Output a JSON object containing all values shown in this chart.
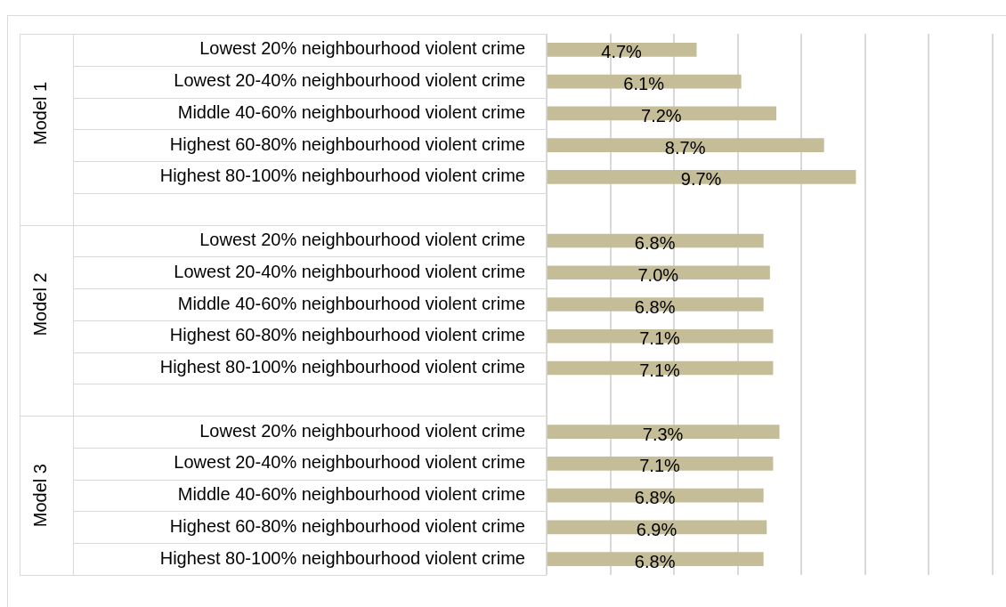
{
  "chart_data": {
    "type": "bar",
    "orientation": "horizontal",
    "categories": [
      "Lowest 20% neighbourhood violent crime",
      "Lowest 20-40% neighbourhood violent crime",
      "Middle 40-60% neighbourhood violent crime",
      "Highest 60-80% neighbourhood violent crime",
      "Highest 80-100% neighbourhood violent crime",
      null,
      "Lowest 20% neighbourhood violent crime",
      "Lowest 20-40% neighbourhood violent crime",
      "Middle 40-60% neighbourhood violent crime",
      "Highest 60-80% neighbourhood violent crime",
      "Highest 80-100% neighbourhood violent crime",
      null,
      "Lowest 20% neighbourhood violent crime",
      "Lowest 20-40% neighbourhood violent crime",
      "Middle 40-60% neighbourhood violent crime",
      "Highest 60-80% neighbourhood violent crime",
      "Highest 80-100% neighbourhood violent crime"
    ],
    "values": [
      4.7,
      6.1,
      7.2,
      8.7,
      9.7,
      null,
      6.8,
      7.0,
      6.8,
      7.1,
      7.1,
      null,
      7.3,
      7.1,
      6.8,
      6.9,
      6.8
    ],
    "value_labels": [
      "4.7%",
      "6.1%",
      "7.2%",
      "8.7%",
      "9.7%",
      null,
      "6.8%",
      "7.0%",
      "6.8%",
      "7.1%",
      "7.1%",
      null,
      "7.3%",
      "7.1%",
      "6.8%",
      "6.9%",
      "6.8%"
    ],
    "color": "#c4bd97",
    "xlim": [
      0,
      14
    ],
    "xticks": [
      {
        "value": 0,
        "label": null
      },
      {
        "value": 2,
        "label": null
      },
      {
        "value": 4,
        "label": null
      },
      {
        "value": 6,
        "label": null
      },
      {
        "value": 8,
        "label": null
      },
      {
        "value": 10,
        "label": null
      },
      {
        "value": 12,
        "label": null
      },
      {
        "value": 14,
        "label": null
      }
    ],
    "grid": "x",
    "legend": false,
    "tick_labels": "y",
    "annotations": [
      "Model 1",
      "Model 2",
      "Model 3"
    ]
  }
}
